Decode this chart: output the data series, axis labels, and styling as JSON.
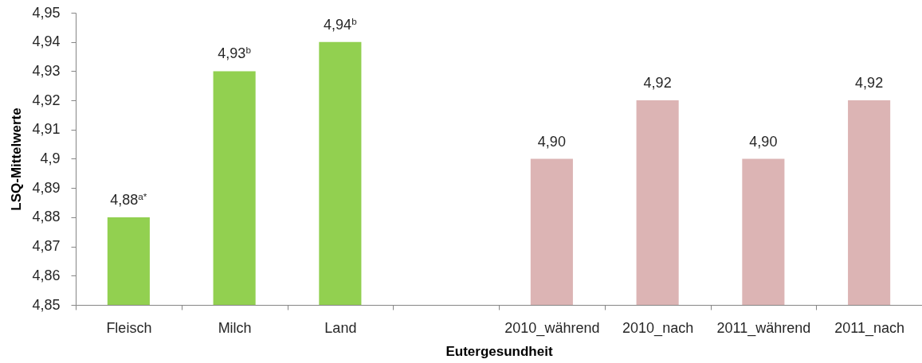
{
  "chart_data": {
    "type": "bar",
    "xlabel": "Eutergesundheit",
    "ylabel": "LSQ-Mittelwerte",
    "categories": [
      "Fleisch",
      "Milch",
      "Land",
      null,
      "2010_während",
      "2010_nach",
      "2011_während",
      "2011_nach"
    ],
    "values": [
      4.88,
      4.93,
      4.94,
      null,
      4.9,
      4.92,
      4.9,
      4.92
    ],
    "colors": [
      "#92d050",
      "#92d050",
      "#92d050",
      null,
      "#dcb4b4",
      "#dcb4b4",
      "#dcb4b4",
      "#dcb4b4"
    ],
    "value_labels": [
      "4,88$^{a*}$",
      "4,93$^{b}$",
      "4,94$^{b}$",
      null,
      "4,90",
      "4,92",
      "4,90",
      "4,92"
    ],
    "ylim": [
      4.85,
      4.95
    ],
    "yticks": [
      {
        "value": 4.85,
        "label": "4,85"
      },
      {
        "value": 4.86,
        "label": "4,86"
      },
      {
        "value": 4.87,
        "label": "4,87"
      },
      {
        "value": 4.88,
        "label": "4,88"
      },
      {
        "value": 4.89,
        "label": "4,89"
      },
      {
        "value": 4.9,
        "label": "4,9"
      },
      {
        "value": 4.91,
        "label": "4,91"
      },
      {
        "value": 4.92,
        "label": "4,92"
      },
      {
        "value": 4.93,
        "label": "4,93"
      },
      {
        "value": 4.94,
        "label": "4,94"
      },
      {
        "value": 4.95,
        "label": "4,95"
      }
    ],
    "grid": false
  }
}
